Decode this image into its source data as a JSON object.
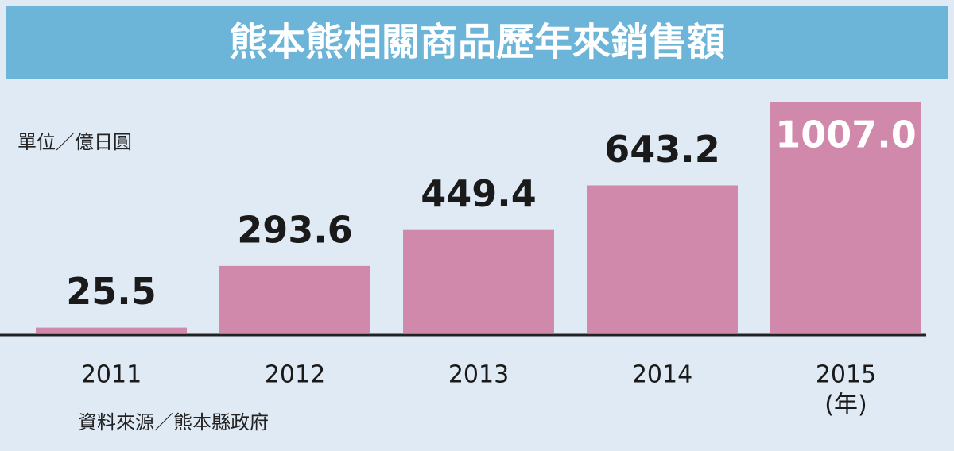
{
  "chart_data": {
    "type": "bar",
    "title": "熊本熊相關商品歷年來銷售額",
    "unit_label": "單位／億日圓",
    "x_unit_label": "(年)",
    "source": "資料來源／熊本縣政府",
    "categories": [
      "2011",
      "2012",
      "2013",
      "2014",
      "2015"
    ],
    "values": [
      25.5,
      293.6,
      449.4,
      643.2,
      1007.0
    ],
    "value_labels": [
      "25.5",
      "293.6",
      "449.4",
      "643.2",
      "1007.0"
    ],
    "color": "#d088ab"
  }
}
